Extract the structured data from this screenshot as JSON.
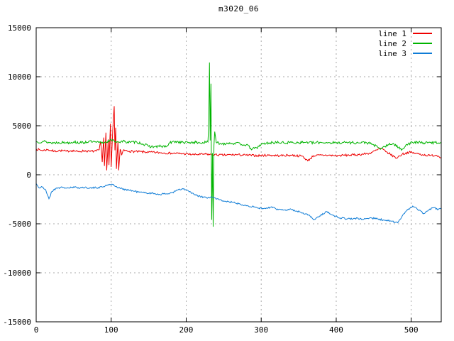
{
  "title": "m3020_06",
  "chart_data": {
    "type": "line",
    "title": "m3020_06",
    "xlabel": "",
    "ylabel": "",
    "x_axis": {
      "min": 0,
      "max": 540,
      "ticks": [
        0,
        100,
        200,
        300,
        400,
        500
      ]
    },
    "y_axis": {
      "min": -15000,
      "max": 15000,
      "ticks": [
        -15000,
        -10000,
        -5000,
        0,
        5000,
        10000,
        15000
      ]
    },
    "grid": {
      "shown": true,
      "style": "dashed",
      "color": "#a8a8a8"
    },
    "border_color": "#000000",
    "legend": {
      "position": "top-right-inside",
      "entries": [
        "line 1",
        "line 2",
        "line 3"
      ]
    },
    "series": [
      {
        "name": "line 1",
        "color": "#ee0000",
        "noise": 110,
        "seed": 7,
        "keypoints": [
          [
            0,
            2620
          ],
          [
            8,
            2480
          ],
          [
            16,
            2560
          ],
          [
            24,
            2400
          ],
          [
            32,
            2470
          ],
          [
            40,
            2400
          ],
          [
            48,
            2480
          ],
          [
            56,
            2350
          ],
          [
            64,
            2450
          ],
          [
            72,
            2380
          ],
          [
            80,
            2420
          ],
          [
            84,
            2550
          ],
          [
            86,
            3400
          ],
          [
            88,
            1300
          ],
          [
            90,
            3800
          ],
          [
            91,
            900
          ],
          [
            93,
            4300
          ],
          [
            94,
            450
          ],
          [
            96,
            3600
          ],
          [
            97,
            1000
          ],
          [
            99,
            5200
          ],
          [
            100,
            800
          ],
          [
            102,
            4500
          ],
          [
            104,
            7000
          ],
          [
            105,
            2500
          ],
          [
            106,
            4800
          ],
          [
            107,
            600
          ],
          [
            109,
            3400
          ],
          [
            110,
            450
          ],
          [
            112,
            2600
          ],
          [
            114,
            2000
          ],
          [
            116,
            2500
          ],
          [
            124,
            2400
          ],
          [
            136,
            2350
          ],
          [
            150,
            2300
          ],
          [
            165,
            2250
          ],
          [
            180,
            2200
          ],
          [
            195,
            2150
          ],
          [
            210,
            2050
          ],
          [
            225,
            2100
          ],
          [
            235,
            2050
          ],
          [
            250,
            2000
          ],
          [
            265,
            2050
          ],
          [
            280,
            2000
          ],
          [
            295,
            1950
          ],
          [
            310,
            2000
          ],
          [
            325,
            1950
          ],
          [
            340,
            2000
          ],
          [
            355,
            1900
          ],
          [
            362,
            1420
          ],
          [
            370,
            1950
          ],
          [
            385,
            2000
          ],
          [
            400,
            1950
          ],
          [
            415,
            2000
          ],
          [
            430,
            2050
          ],
          [
            445,
            2200
          ],
          [
            455,
            2550
          ],
          [
            460,
            2700
          ],
          [
            466,
            2350
          ],
          [
            472,
            2100
          ],
          [
            480,
            1700
          ],
          [
            488,
            2100
          ],
          [
            497,
            2300
          ],
          [
            505,
            2200
          ],
          [
            515,
            2050
          ],
          [
            525,
            1950
          ],
          [
            533,
            2000
          ],
          [
            540,
            1800
          ]
        ]
      },
      {
        "name": "line 2",
        "color": "#00b400",
        "noise": 140,
        "seed": 13,
        "keypoints": [
          [
            0,
            3350
          ],
          [
            10,
            3400
          ],
          [
            20,
            3250
          ],
          [
            30,
            3300
          ],
          [
            40,
            3280
          ],
          [
            50,
            3350
          ],
          [
            60,
            3250
          ],
          [
            70,
            3400
          ],
          [
            80,
            3300
          ],
          [
            90,
            3280
          ],
          [
            98,
            3500
          ],
          [
            104,
            3450
          ],
          [
            110,
            3350
          ],
          [
            118,
            3400
          ],
          [
            126,
            3300
          ],
          [
            134,
            3350
          ],
          [
            142,
            3150
          ],
          [
            150,
            2900
          ],
          [
            158,
            2850
          ],
          [
            166,
            2900
          ],
          [
            174,
            2870
          ],
          [
            178,
            3250
          ],
          [
            186,
            3400
          ],
          [
            194,
            3300
          ],
          [
            202,
            3280
          ],
          [
            210,
            3320
          ],
          [
            218,
            3250
          ],
          [
            226,
            3300
          ],
          [
            229,
            3350
          ],
          [
            230,
            5000
          ],
          [
            231,
            11450
          ],
          [
            232,
            3500
          ],
          [
            233,
            9300
          ],
          [
            234,
            -4600
          ],
          [
            235,
            2200
          ],
          [
            236,
            -5300
          ],
          [
            237,
            3000
          ],
          [
            238,
            4400
          ],
          [
            240,
            3300
          ],
          [
            248,
            3150
          ],
          [
            256,
            3250
          ],
          [
            264,
            3200
          ],
          [
            272,
            3150
          ],
          [
            280,
            3050
          ],
          [
            288,
            2600
          ],
          [
            294,
            2750
          ],
          [
            300,
            3100
          ],
          [
            310,
            3250
          ],
          [
            320,
            3300
          ],
          [
            330,
            3250
          ],
          [
            340,
            3300
          ],
          [
            350,
            3280
          ],
          [
            360,
            3320
          ],
          [
            370,
            3250
          ],
          [
            380,
            3300
          ],
          [
            390,
            3280
          ],
          [
            400,
            3250
          ],
          [
            410,
            3300
          ],
          [
            420,
            3280
          ],
          [
            430,
            3250
          ],
          [
            440,
            3300
          ],
          [
            450,
            3050
          ],
          [
            458,
            2650
          ],
          [
            464,
            2850
          ],
          [
            470,
            3050
          ],
          [
            476,
            3200
          ],
          [
            483,
            2750
          ],
          [
            488,
            2600
          ],
          [
            494,
            3100
          ],
          [
            502,
            3300
          ],
          [
            512,
            3280
          ],
          [
            522,
            3250
          ],
          [
            532,
            3300
          ],
          [
            540,
            3280
          ]
        ]
      },
      {
        "name": "line 3",
        "color": "#0f7cd6",
        "noise": 90,
        "seed": 21,
        "keypoints": [
          [
            0,
            -900
          ],
          [
            4,
            -1350
          ],
          [
            8,
            -1250
          ],
          [
            13,
            -1600
          ],
          [
            17,
            -2450
          ],
          [
            21,
            -1700
          ],
          [
            27,
            -1350
          ],
          [
            35,
            -1300
          ],
          [
            43,
            -1350
          ],
          [
            51,
            -1280
          ],
          [
            59,
            -1320
          ],
          [
            67,
            -1300
          ],
          [
            75,
            -1350
          ],
          [
            83,
            -1300
          ],
          [
            90,
            -1200
          ],
          [
            96,
            -1000
          ],
          [
            101,
            -950
          ],
          [
            106,
            -1200
          ],
          [
            112,
            -1400
          ],
          [
            120,
            -1500
          ],
          [
            129,
            -1650
          ],
          [
            138,
            -1780
          ],
          [
            147,
            -1850
          ],
          [
            156,
            -1900
          ],
          [
            165,
            -2000
          ],
          [
            174,
            -1950
          ],
          [
            182,
            -1800
          ],
          [
            189,
            -1550
          ],
          [
            196,
            -1450
          ],
          [
            203,
            -1650
          ],
          [
            211,
            -2050
          ],
          [
            220,
            -2250
          ],
          [
            229,
            -2350
          ],
          [
            236,
            -2300
          ],
          [
            244,
            -2550
          ],
          [
            252,
            -2700
          ],
          [
            261,
            -2800
          ],
          [
            270,
            -2950
          ],
          [
            279,
            -3100
          ],
          [
            288,
            -3250
          ],
          [
            297,
            -3400
          ],
          [
            306,
            -3450
          ],
          [
            313,
            -3300
          ],
          [
            320,
            -3500
          ],
          [
            329,
            -3600
          ],
          [
            338,
            -3500
          ],
          [
            347,
            -3700
          ],
          [
            356,
            -3900
          ],
          [
            364,
            -4100
          ],
          [
            370,
            -4600
          ],
          [
            378,
            -4200
          ],
          [
            387,
            -3750
          ],
          [
            395,
            -4100
          ],
          [
            405,
            -4400
          ],
          [
            415,
            -4500
          ],
          [
            425,
            -4450
          ],
          [
            435,
            -4550
          ],
          [
            445,
            -4400
          ],
          [
            455,
            -4500
          ],
          [
            465,
            -4650
          ],
          [
            472,
            -4700
          ],
          [
            478,
            -4850
          ],
          [
            482,
            -4900
          ],
          [
            488,
            -4200
          ],
          [
            494,
            -3600
          ],
          [
            502,
            -3190
          ],
          [
            508,
            -3500
          ],
          [
            517,
            -3950
          ],
          [
            523,
            -3600
          ],
          [
            530,
            -3350
          ],
          [
            536,
            -3550
          ],
          [
            540,
            -3400
          ]
        ]
      }
    ]
  }
}
